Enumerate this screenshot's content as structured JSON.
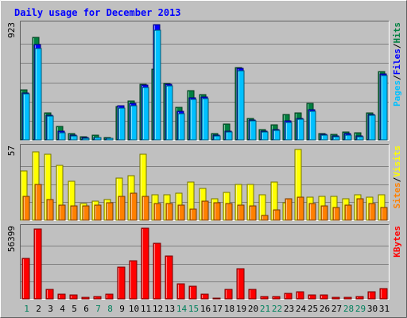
{
  "chart_data": {
    "type": "bar",
    "title": "Daily usage for December 2013",
    "categories": [
      "1",
      "2",
      "3",
      "4",
      "5",
      "6",
      "7",
      "8",
      "9",
      "10",
      "11",
      "12",
      "13",
      "14",
      "15",
      "16",
      "17",
      "18",
      "19",
      "20",
      "21",
      "22",
      "23",
      "24",
      "25",
      "26",
      "27",
      "28",
      "29",
      "30",
      "31"
    ],
    "weekend_days": [
      "1",
      "7",
      "8",
      "14",
      "15",
      "21",
      "22",
      "28",
      "29"
    ],
    "panels": [
      {
        "name": "hits-files-pages",
        "ymax_label": "923",
        "ylim": [
          0,
          923
        ],
        "legend": [
          {
            "text": "Pages",
            "color": "#00c0ff"
          },
          {
            "text": "Files",
            "color": "#0000ff"
          },
          {
            "text": "Hits",
            "color": "#008040"
          }
        ],
        "separators": [
          "/",
          "/"
        ],
        "series": [
          {
            "name": "Hits",
            "color": "#008040",
            "values": [
              398,
              818,
              217,
              107,
              48,
              25,
              37,
              20,
              265,
              313,
              445,
              564,
              453,
              264,
              397,
              365,
              53,
              126,
              582,
              175,
              81,
              118,
              203,
              214,
              290,
              51,
              45,
              61,
              57,
              219,
              547
            ]
          },
          {
            "name": "Files",
            "color": "#0000ff",
            "values": [
              378,
              762,
              200,
              69,
              40,
              16,
              22,
              15,
              276,
              292,
              438,
              923,
              447,
              227,
              337,
              341,
              36,
              73,
              570,
              160,
              69,
              82,
              154,
              175,
              241,
              47,
              30,
              48,
              32,
              205,
              526
            ]
          },
          {
            "name": "Pages",
            "color": "#00c0ff",
            "values": [
              368,
              730,
              190,
              60,
              34,
              12,
              20,
              12,
              255,
              275,
              420,
              876,
              430,
              210,
              324,
              330,
              30,
              65,
              555,
              150,
              62,
              75,
              140,
              165,
              230,
              40,
              24,
              40,
              26,
              200,
              513
            ]
          }
        ]
      },
      {
        "name": "visits-sites",
        "ymax_label": "57",
        "ylim": [
          0,
          57
        ],
        "legend": [
          {
            "text": "Sites",
            "color": "#ff8000"
          },
          {
            "text": "Visits",
            "color": "#ffff00"
          }
        ],
        "separators": [
          "/"
        ],
        "series": [
          {
            "name": "Visits",
            "color": "#ffff00",
            "values": [
              39,
              54,
              52,
              43,
              31,
              13,
              15,
              16,
              33,
              35,
              52,
              20,
              20,
              21,
              30,
              25,
              17,
              22,
              28,
              28,
              20,
              30,
              14,
              56,
              18,
              19,
              19,
              17,
              20,
              18,
              20
            ]
          },
          {
            "name": "Sites",
            "color": "#ff8000",
            "values": [
              19,
              28,
              16,
              12,
              11,
              11,
              12,
              14,
              19,
              21,
              19,
              13,
              13,
              12,
              9,
              15,
              14,
              13,
              12,
              11,
              4,
              8,
              17,
              18,
              13,
              11,
              10,
              12,
              17,
              13,
              10
            ]
          }
        ]
      },
      {
        "name": "kbytes",
        "ymax_label": "56399",
        "ylim": [
          0,
          56399
        ],
        "legend": [
          {
            "text": "KBytes",
            "color": "#ff0000"
          }
        ],
        "separators": [],
        "series": [
          {
            "name": "KBytes",
            "color": "#ff0000",
            "values": [
              32500,
              55500,
              7700,
              3800,
              2900,
              1000,
              1900,
              3500,
              25100,
              30400,
              56399,
              44100,
              34000,
              12100,
              10000,
              3900,
              800,
              7600,
              24300,
              7300,
              2100,
              1800,
              4300,
              6000,
              2900,
              2900,
              1200,
              1500,
              1800,
              5900,
              8400
            ]
          }
        ]
      }
    ]
  }
}
